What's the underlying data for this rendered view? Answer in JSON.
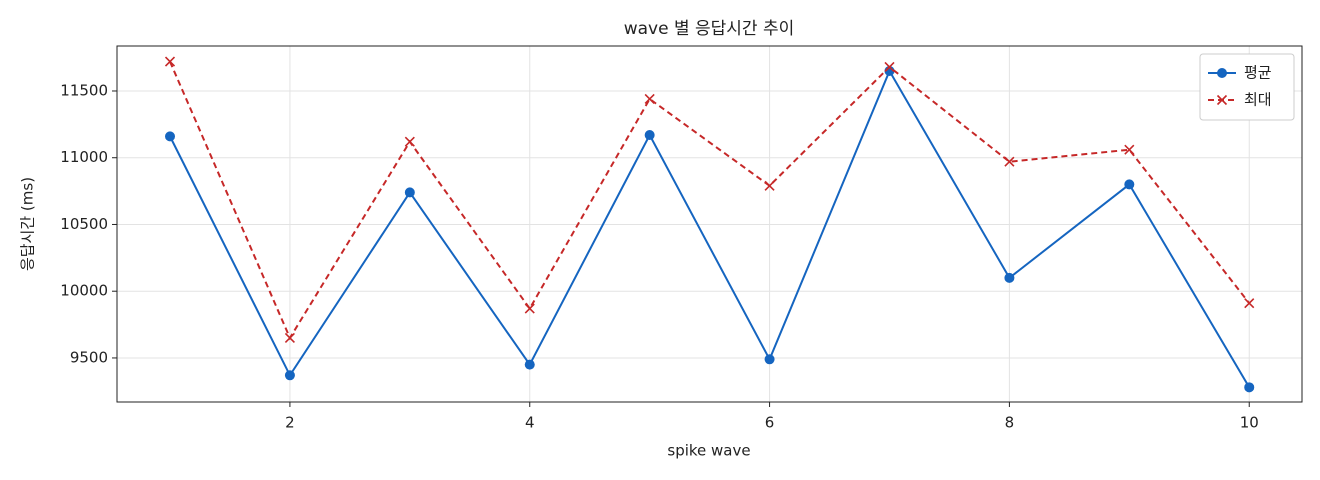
{
  "chart_data": {
    "type": "line",
    "title": "wave 별 응답시간 추이",
    "x_label": "spike wave",
    "y_label": "응답시간 (ms)",
    "x": [
      1,
      2,
      3,
      4,
      5,
      6,
      7,
      8,
      9,
      10
    ],
    "series": [
      {
        "name": "평균",
        "color": "#1565c0",
        "dash": false,
        "marker": "circle",
        "values": [
          11160,
          9370,
          10740,
          9450,
          11170,
          9490,
          11650,
          10100,
          10800,
          9280
        ]
      },
      {
        "name": "최대",
        "color": "#c62828",
        "dash": true,
        "marker": "x",
        "values": [
          11720,
          9650,
          11120,
          9870,
          11440,
          10790,
          11680,
          10970,
          11060,
          9910
        ]
      }
    ],
    "xlim": [
      0.558,
      10.44
    ],
    "ylim": [
      9170,
      11837
    ],
    "xticks": [
      2,
      4,
      6,
      8,
      10
    ],
    "yticks": [
      9500,
      10000,
      10500,
      11000,
      11500
    ],
    "grid": true,
    "legend": "upper right"
  }
}
